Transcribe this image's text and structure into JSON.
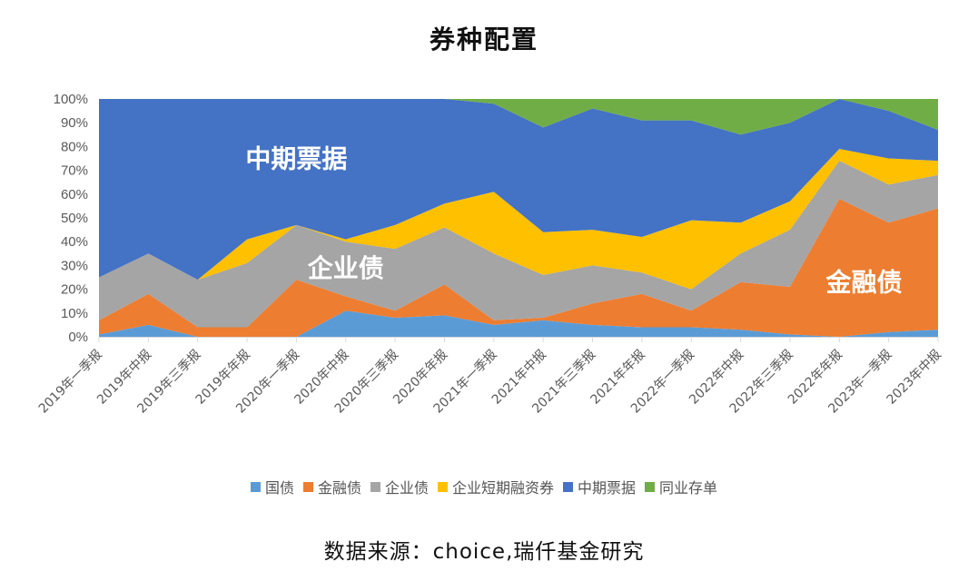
{
  "title": "券种配置",
  "source": "数据来源：choice,瑞仟基金研究",
  "legend": [
    {
      "label": "国债",
      "color": "#5B9BD5"
    },
    {
      "label": "金融债",
      "color": "#ED7D31"
    },
    {
      "label": "企业债",
      "color": "#A5A5A5"
    },
    {
      "label": "企业短期融资券",
      "color": "#FFC000"
    },
    {
      "label": "中期票据",
      "color": "#4472C4"
    },
    {
      "label": "同业存单",
      "color": "#70AD47"
    }
  ],
  "chart_data": {
    "type": "area",
    "stacked": "percent",
    "title": "券种配置",
    "xlabel": "",
    "ylabel": "",
    "ylim": [
      0,
      100
    ],
    "yticks": [
      "0%",
      "10%",
      "20%",
      "30%",
      "40%",
      "50%",
      "60%",
      "70%",
      "80%",
      "90%",
      "100%"
    ],
    "grid": false,
    "legend_position": "bottom",
    "categories": [
      "2019年一季报",
      "2019年中报",
      "2019年三季报",
      "2019年年报",
      "2020年一季报",
      "2020年中报",
      "2020年三季报",
      "2020年年报",
      "2021年一季报",
      "2021年中报",
      "2021年三季报",
      "2021年年报",
      "2022年一季报",
      "2022年中报",
      "2022年三季报",
      "2022年年报",
      "2023年一季报",
      "2023年中报"
    ],
    "series": [
      {
        "name": "国债",
        "color": "#5B9BD5",
        "values": [
          1,
          5,
          0,
          0,
          0,
          11,
          8,
          9,
          5,
          7,
          5,
          4,
          4,
          3,
          1,
          0,
          2,
          3
        ]
      },
      {
        "name": "金融债",
        "color": "#ED7D31",
        "values": [
          6,
          13,
          4,
          4,
          24,
          6,
          3,
          13,
          2,
          1,
          9,
          14,
          7,
          20,
          20,
          58,
          46,
          51
        ]
      },
      {
        "name": "企业债",
        "color": "#A5A5A5",
        "values": [
          18,
          17,
          20,
          27,
          23,
          23,
          26,
          24,
          28,
          18,
          16,
          9,
          9,
          12,
          24,
          16,
          16,
          14
        ]
      },
      {
        "name": "企业短期融资券",
        "color": "#FFC000",
        "values": [
          0,
          0,
          0,
          10,
          0,
          1,
          10,
          10,
          26,
          18,
          15,
          15,
          29,
          13,
          12,
          5,
          11,
          6
        ]
      },
      {
        "name": "中期票据",
        "color": "#4472C4",
        "values": [
          75,
          65,
          76,
          59,
          53,
          59,
          53,
          44,
          37,
          44,
          51,
          49,
          42,
          37,
          33,
          21,
          20,
          13
        ]
      },
      {
        "name": "同业存单",
        "color": "#70AD47",
        "values": [
          0,
          0,
          0,
          0,
          0,
          0,
          0,
          0,
          2,
          12,
          4,
          9,
          9,
          15,
          10,
          0,
          5,
          13
        ]
      }
    ],
    "annotations": [
      {
        "text": "中期票据",
        "x_index": 4,
        "y_pct": 75
      },
      {
        "text": "企业债",
        "x_index": 5,
        "y_pct": 29
      },
      {
        "text": "金融债",
        "x_index": 15.5,
        "y_pct": 23
      }
    ]
  }
}
